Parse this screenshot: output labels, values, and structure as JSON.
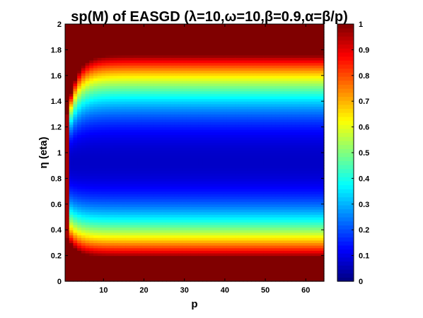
{
  "chart_data": {
    "type": "heatmap",
    "title": "sp(M) of EASGD (λ=10,ω=10,β=0.9,α=β/p)",
    "xlabel": "p",
    "ylabel": "η (eta)",
    "xlim": [
      0.5,
      64.5
    ],
    "ylim": [
      0,
      2
    ],
    "x_ticks": [
      10,
      20,
      30,
      40,
      50,
      60
    ],
    "x_tick_labels": [
      "10",
      "20",
      "30",
      "40",
      "50",
      "60"
    ],
    "y_ticks": [
      0,
      0.2,
      0.4,
      0.6,
      0.8,
      1,
      1.2,
      1.4,
      1.6,
      1.8,
      2
    ],
    "y_tick_labels": [
      "0",
      "0.2",
      "0.4",
      "0.6",
      "0.8",
      "1",
      "1.2",
      "1.4",
      "1.6",
      "1.8",
      "2"
    ],
    "colorbar": {
      "range": [
        0,
        1
      ],
      "ticks": [
        0,
        0.1,
        0.2,
        0.3,
        0.4,
        0.5,
        0.6,
        0.7,
        0.8,
        0.9,
        1
      ],
      "tick_labels": [
        "0",
        "0.1",
        "0.2",
        "0.3",
        "0.4",
        "0.5",
        "0.6",
        "0.7",
        "0.8",
        "0.9",
        "1"
      ],
      "colormap": "jet"
    },
    "p_values": [
      1,
      64
    ],
    "eta_step": 0.02,
    "grid": false
  }
}
